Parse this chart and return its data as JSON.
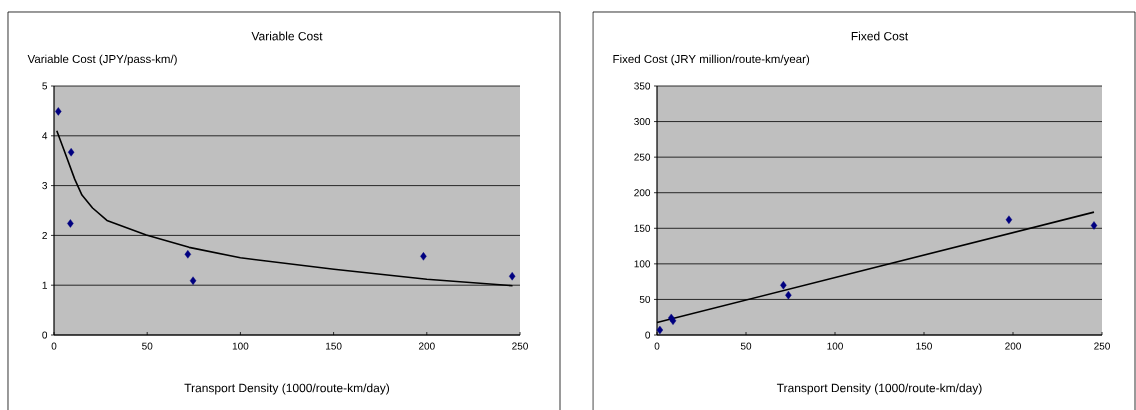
{
  "chart_data": [
    {
      "type": "scatter",
      "title": "Variable Cost",
      "ylabel": "Variable Cost (JPY/pass-km/)",
      "xlabel": "Transport Density (1000/route-km/day)",
      "xlim": [
        0,
        250
      ],
      "xticks": [
        0,
        50,
        100,
        150,
        200,
        250
      ],
      "ylim": [
        0,
        5
      ],
      "yticks": [
        0,
        1,
        2,
        3,
        4,
        5
      ],
      "grid": "y",
      "marker": "diamond",
      "series": [
        {
          "color": "#000080",
          "x": [
            2.3,
            9.2,
            8.8,
            71.8,
            74.6,
            198.2,
            245.8
          ],
          "values": [
            4.49,
            3.67,
            2.24,
            1.62,
            1.09,
            1.58,
            1.18
          ]
        },
        {
          "type": "line",
          "color": "#000000",
          "marker": "none",
          "line_style": "solid",
          "x": [
            1.5,
            5.4,
            11.1,
            15,
            20.7,
            28.4,
            49.5,
            72.5,
            100,
            150.2,
            200,
            246
          ],
          "values": [
            4.1,
            3.71,
            3.13,
            2.81,
            2.55,
            2.3,
            2.01,
            1.76,
            1.55,
            1.32,
            1.12,
            0.99
          ]
        }
      ]
    },
    {
      "type": "scatter",
      "title": "Fixed Cost",
      "ylabel": "Fixed Cost (JRY million/route-km/year)",
      "xlabel": "Transport Density (1000/route-km/day)",
      "xlim": [
        0,
        250
      ],
      "xticks": [
        0,
        50,
        100,
        150,
        200,
        250
      ],
      "ylim": [
        0,
        350
      ],
      "yticks": [
        0,
        50,
        100,
        150,
        200,
        250,
        300,
        350
      ],
      "grid": "y",
      "marker": "diamond",
      "series": [
        {
          "color": "#000080",
          "x": [
            1.6,
            8,
            9,
            71,
            73.8,
            197.7,
            245.5
          ],
          "values": [
            7,
            24,
            20,
            70,
            56,
            162,
            154
          ]
        },
        {
          "type": "line",
          "color": "#000000",
          "marker": "none",
          "line_style": "solid",
          "x": [
            0,
            245.5
          ],
          "values": [
            17.6,
            172.7
          ]
        }
      ]
    }
  ]
}
